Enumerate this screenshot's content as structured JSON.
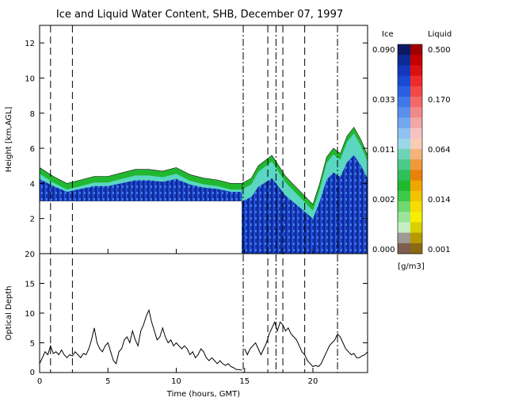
{
  "chart_data": [
    {
      "type": "heatmap",
      "title": "Ice and Liquid Water Content, SHB, December 07, 1997",
      "xlabel": "",
      "ylabel": "Height [km,AGL]",
      "xlim": [
        0,
        24
      ],
      "ylim": [
        0,
        13
      ],
      "y_ticks": [
        2,
        4,
        6,
        8,
        10,
        12
      ],
      "y_tick_labels": [
        "2",
        "4",
        "6",
        "8",
        "10",
        "12"
      ],
      "x_ticks": [
        0,
        5,
        10,
        15,
        20
      ],
      "layers": [
        {
          "name": "ice cloud, segment 1",
          "x_start": 0.0,
          "x_end": 14.8,
          "base": 3.0,
          "top_x": [
            0,
            1,
            2,
            3,
            4,
            5,
            6,
            7,
            8,
            9,
            10,
            11,
            12,
            13,
            14,
            14.8
          ],
          "top": [
            4.9,
            4.4,
            4.0,
            4.2,
            4.4,
            4.4,
            4.6,
            4.8,
            4.8,
            4.7,
            4.9,
            4.5,
            4.3,
            4.2,
            4.0,
            4.0
          ]
        },
        {
          "name": "ice cloud, segment 2",
          "x_start": 14.8,
          "x_end": 24.0,
          "base": 0.0,
          "top_x": [
            14.8,
            15.5,
            16,
            16.5,
            17,
            17.5,
            18,
            18.5,
            19,
            19.5,
            20,
            20.5,
            21,
            21.5,
            22,
            22.5,
            23,
            23.5,
            24
          ],
          "top": [
            4.0,
            4.3,
            5.0,
            5.3,
            5.6,
            5.0,
            4.4,
            4.0,
            3.6,
            3.2,
            2.8,
            4.0,
            5.5,
            6.0,
            5.7,
            6.7,
            7.2,
            6.5,
            5.6
          ]
        }
      ],
      "guide_lines_dashed": [
        0.8,
        2.4,
        16.7,
        17.8,
        19.4
      ],
      "guide_lines_dashdot": [
        14.9,
        17.3,
        21.8
      ],
      "colorbar": {
        "ice_label": "Ice",
        "liquid_label": "Liquid",
        "unit": "[g/m3]",
        "ice_ticks": [
          "0.090",
          "0.033",
          "0.011",
          "0.002",
          "0.000"
        ],
        "liquid_ticks": [
          "0.500",
          "0.170",
          "0.064",
          "0.014",
          "0.001"
        ],
        "ice_colors": [
          "#0c1a66",
          "#0f2a94",
          "#1437bb",
          "#1a4bd3",
          "#2a5fe0",
          "#4277e6",
          "#5a8fec",
          "#72a7f0",
          "#8fc2f3",
          "#9bd6ea",
          "#6fd3b6",
          "#4cc98b",
          "#2fbf5c",
          "#21b830",
          "#3dc84a",
          "#6fd86e",
          "#9be49a",
          "#c5efc3",
          "#9e9a96",
          "#7d5e50"
        ],
        "liquid_colors": [
          "#a00000",
          "#c40000",
          "#dd1010",
          "#ee2a2a",
          "#f24848",
          "#f46868",
          "#f28888",
          "#f2a6a6",
          "#f8c2c2",
          "#f7cdb4",
          "#f4b37a",
          "#f0993a",
          "#e8820a",
          "#f0a600",
          "#f3c200",
          "#f6dc00",
          "#f8ef00",
          "#d8d000",
          "#b89a00",
          "#8b6a14"
        ]
      }
    },
    {
      "type": "line",
      "title": "",
      "xlabel": "Time (hours, GMT)",
      "ylabel": "Optical Depth",
      "xlim": [
        0,
        24
      ],
      "ylim": [
        0,
        20
      ],
      "x_ticks": [
        0,
        5,
        10,
        15,
        20
      ],
      "x_tick_labels": [
        "0",
        "5",
        "10",
        "15",
        "20"
      ],
      "y_ticks": [
        0,
        5,
        10,
        15,
        20
      ],
      "y_tick_labels": [
        "0",
        "5",
        "10",
        "15",
        "20"
      ],
      "series": [
        {
          "segment": 1,
          "x": [
            0.0,
            0.2,
            0.4,
            0.6,
            0.8,
            1.0,
            1.2,
            1.4,
            1.6,
            1.8,
            2.0,
            2.2,
            2.4,
            2.6,
            2.8,
            3.0,
            3.2,
            3.4,
            3.6,
            3.8,
            4.0,
            4.2,
            4.4,
            4.6,
            4.8,
            5.0,
            5.2,
            5.4,
            5.6,
            5.8,
            6.0,
            6.2,
            6.4,
            6.6,
            6.8,
            7.0,
            7.2,
            7.4,
            7.6,
            7.8,
            8.0,
            8.2,
            8.4,
            8.6,
            8.8,
            9.0,
            9.2,
            9.4,
            9.6,
            9.8,
            10.0,
            10.2,
            10.4,
            10.6,
            10.8,
            11.0,
            11.2,
            11.4,
            11.6,
            11.8,
            12.0,
            12.2,
            12.4,
            12.6,
            12.8,
            13.0,
            13.2,
            13.4,
            13.6,
            13.8,
            14.0,
            14.2,
            14.4,
            14.6,
            14.8
          ],
          "y": [
            1.5,
            2.5,
            3.5,
            3.0,
            4.5,
            3.2,
            3.5,
            3.0,
            3.8,
            3.0,
            2.5,
            3.0,
            2.8,
            3.5,
            3.0,
            2.5,
            3.2,
            3.0,
            4.0,
            5.5,
            7.5,
            5.0,
            4.0,
            3.5,
            4.5,
            5.0,
            3.5,
            2.0,
            1.5,
            3.5,
            4.0,
            5.5,
            6.0,
            5.0,
            7.0,
            5.5,
            4.5,
            7.0,
            8.0,
            9.5,
            10.5,
            8.5,
            7.0,
            5.5,
            6.0,
            7.5,
            6.0,
            5.0,
            5.5,
            4.5,
            5.0,
            4.5,
            4.0,
            4.5,
            4.0,
            3.0,
            3.5,
            2.5,
            3.0,
            4.0,
            3.5,
            2.5,
            2.0,
            2.5,
            2.0,
            1.5,
            2.0,
            1.5,
            1.2,
            1.5,
            1.0,
            0.8,
            0.5,
            0.5,
            0.4
          ]
        },
        {
          "segment": 2,
          "x": [
            15.0,
            15.2,
            15.4,
            15.6,
            15.8,
            16.0,
            16.2,
            16.4,
            16.6,
            16.8,
            17.0,
            17.2,
            17.4,
            17.6,
            17.8,
            18.0,
            18.2,
            18.4,
            18.6,
            18.8,
            19.0,
            19.2,
            19.4,
            19.6,
            19.8,
            20.0,
            20.2,
            20.4,
            20.6,
            20.8,
            21.0,
            21.2,
            21.4,
            21.6,
            21.8,
            22.0,
            22.2,
            22.4,
            22.6,
            22.8,
            23.0,
            23.2,
            23.4,
            23.6,
            23.8,
            24.0
          ],
          "y": [
            4.0,
            3.0,
            4.0,
            4.5,
            5.0,
            4.0,
            3.0,
            4.0,
            5.0,
            6.5,
            7.5,
            8.5,
            7.0,
            8.5,
            8.0,
            7.0,
            7.5,
            6.5,
            6.0,
            5.5,
            4.5,
            3.5,
            3.0,
            2.0,
            1.5,
            1.0,
            1.2,
            1.0,
            1.5,
            2.5,
            3.5,
            4.5,
            5.0,
            5.5,
            6.5,
            6.0,
            5.0,
            4.0,
            3.5,
            3.0,
            3.2,
            2.5,
            2.5,
            2.8,
            3.0,
            3.5
          ]
        }
      ],
      "guide_lines_dashed": [
        0.8,
        2.4,
        16.7,
        17.8,
        19.4
      ],
      "guide_lines_dashdot": [
        14.9,
        17.3,
        21.8
      ]
    }
  ]
}
